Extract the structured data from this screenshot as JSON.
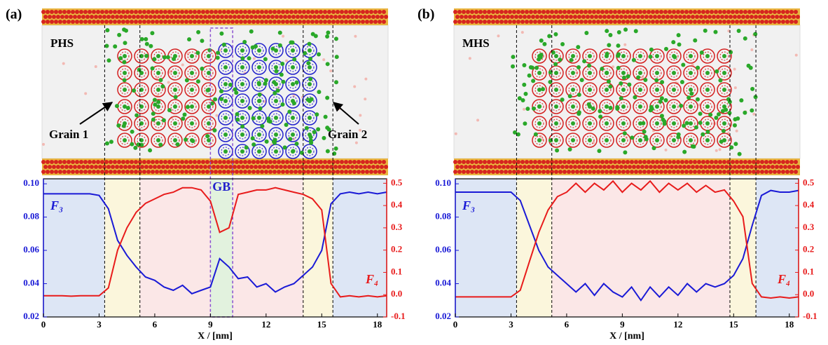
{
  "chart_data": [
    {
      "type": "line",
      "panel_label": "(a)",
      "sample_label": "PHS",
      "xlabel": "X / [nm]",
      "annotations": [
        "Grain 1",
        "Grain 2",
        "GB"
      ],
      "x": [
        0,
        0.5,
        1,
        1.5,
        2,
        2.5,
        3,
        3.5,
        4,
        4.5,
        5,
        5.5,
        6,
        6.5,
        7,
        7.5,
        8,
        8.5,
        9,
        9.5,
        10,
        10.5,
        11,
        11.5,
        12,
        12.5,
        13,
        13.5,
        14,
        14.5,
        15,
        15.5,
        16,
        16.5,
        17,
        17.5,
        18,
        18.5
      ],
      "series": [
        {
          "name": "F₃",
          "color": "#1a1ad6",
          "axis": "y",
          "values": [
            0.094,
            0.094,
            0.094,
            0.094,
            0.094,
            0.094,
            0.093,
            0.085,
            0.066,
            0.057,
            0.05,
            0.044,
            0.042,
            0.038,
            0.036,
            0.039,
            0.034,
            0.036,
            0.038,
            0.055,
            0.05,
            0.043,
            0.044,
            0.038,
            0.04,
            0.035,
            0.038,
            0.04,
            0.045,
            0.05,
            0.06,
            0.088,
            0.094,
            0.095,
            0.094,
            0.095,
            0.094,
            0.095
          ]
        },
        {
          "name": "F₄",
          "color": "#e81b1b",
          "axis": "y2",
          "values": [
            -0.005,
            -0.005,
            -0.005,
            -0.007,
            -0.005,
            -0.005,
            -0.005,
            0.03,
            0.2,
            0.3,
            0.37,
            0.41,
            0.43,
            0.45,
            0.46,
            0.48,
            0.48,
            0.47,
            0.42,
            0.28,
            0.3,
            0.45,
            0.46,
            0.47,
            0.47,
            0.48,
            0.47,
            0.46,
            0.45,
            0.43,
            0.38,
            0.05,
            -0.01,
            -0.005,
            -0.01,
            -0.005,
            -0.01,
            -0.005
          ]
        }
      ],
      "regions": [
        {
          "from": 0,
          "to": 3.3,
          "color": "#dde6f5"
        },
        {
          "from": 3.3,
          "to": 5.2,
          "color": "#fbf6dc"
        },
        {
          "from": 5.2,
          "to": 9,
          "color": "#fbe7e7"
        },
        {
          "from": 9,
          "to": 10.2,
          "color": "#e2f2de",
          "outline": "#8a4fd0"
        },
        {
          "from": 10.2,
          "to": 14,
          "color": "#fbe7e7"
        },
        {
          "from": 14,
          "to": 15.6,
          "color": "#fbf6dc"
        },
        {
          "from": 15.6,
          "to": 18.5,
          "color": "#dde6f5"
        }
      ],
      "xlim": [
        0,
        18.5
      ],
      "xticks": [
        0,
        3,
        6,
        9,
        12,
        15,
        18
      ],
      "ylim": [
        0.02,
        0.103
      ],
      "yticks": [
        0.02,
        0.04,
        0.06,
        0.08,
        {
          "value": 0.1,
          "label": "0.10"
        }
      ],
      "y2lim": [
        -0.1,
        0.52
      ],
      "y2ticks": [
        -0.1,
        {
          "value": 0,
          "label": "0.0"
        },
        0.1,
        0.2,
        0.3,
        0.4,
        0.5
      ]
    },
    {
      "type": "line",
      "panel_label": "(b)",
      "sample_label": "MHS",
      "xlabel": "X / [nm]",
      "annotations": [],
      "x": [
        0,
        0.5,
        1,
        1.5,
        2,
        2.5,
        3,
        3.5,
        4,
        4.5,
        5,
        5.5,
        6,
        6.5,
        7,
        7.5,
        8,
        8.5,
        9,
        9.5,
        10,
        10.5,
        11,
        11.5,
        12,
        12.5,
        13,
        13.5,
        14,
        14.5,
        15,
        15.5,
        16,
        16.5,
        17,
        17.5,
        18,
        18.5
      ],
      "series": [
        {
          "name": "F₃",
          "color": "#1a1ad6",
          "axis": "y",
          "values": [
            0.095,
            0.095,
            0.095,
            0.095,
            0.095,
            0.095,
            0.095,
            0.09,
            0.075,
            0.06,
            0.05,
            0.045,
            0.04,
            0.035,
            0.04,
            0.033,
            0.04,
            0.035,
            0.032,
            0.038,
            0.03,
            0.038,
            0.032,
            0.038,
            0.033,
            0.04,
            0.035,
            0.04,
            0.038,
            0.04,
            0.045,
            0.055,
            0.075,
            0.093,
            0.096,
            0.095,
            0.095,
            0.096
          ]
        },
        {
          "name": "F₄",
          "color": "#e81b1b",
          "axis": "y2",
          "values": [
            -0.01,
            -0.01,
            -0.01,
            -0.01,
            -0.01,
            -0.01,
            -0.01,
            0.02,
            0.15,
            0.28,
            0.38,
            0.44,
            0.46,
            0.5,
            0.46,
            0.5,
            0.47,
            0.51,
            0.46,
            0.5,
            0.47,
            0.51,
            0.46,
            0.5,
            0.47,
            0.5,
            0.46,
            0.49,
            0.46,
            0.47,
            0.42,
            0.35,
            0.05,
            -0.01,
            -0.015,
            -0.01,
            -0.015,
            -0.01
          ]
        }
      ],
      "regions": [
        {
          "from": 0,
          "to": 3.3,
          "color": "#dde6f5"
        },
        {
          "from": 3.3,
          "to": 5.2,
          "color": "#fbf6dc"
        },
        {
          "from": 5.2,
          "to": 14.8,
          "color": "#fbe7e7"
        },
        {
          "from": 14.8,
          "to": 16.2,
          "color": "#fbf6dc"
        },
        {
          "from": 16.2,
          "to": 18.5,
          "color": "#dde6f5"
        }
      ],
      "xlim": [
        0,
        18.5
      ],
      "xticks": [
        0,
        3,
        6,
        9,
        12,
        15,
        18
      ],
      "ylim": [
        0.02,
        0.103
      ],
      "yticks": [
        0.02,
        0.04,
        0.06,
        0.08,
        {
          "value": 0.1,
          "label": "0.10"
        }
      ],
      "y2lim": [
        -0.1,
        0.52
      ],
      "y2ticks": [
        -0.1,
        {
          "value": 0,
          "label": "0.0"
        },
        0.1,
        0.2,
        0.3,
        0.4,
        0.5
      ]
    }
  ]
}
